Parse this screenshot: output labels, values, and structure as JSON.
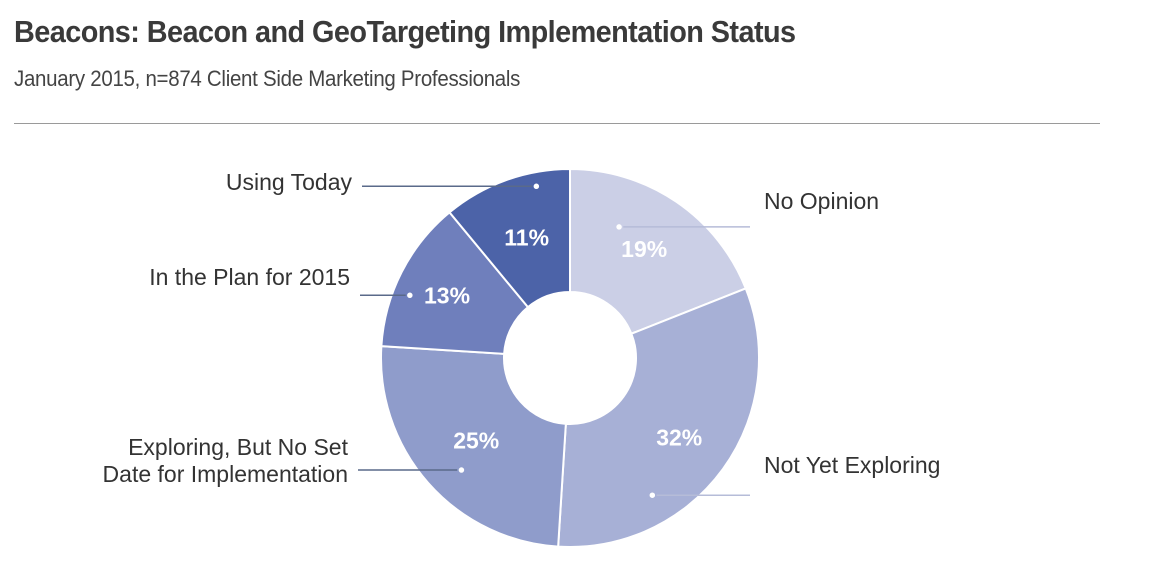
{
  "header": {
    "title": "Beacons: Beacon and GeoTargeting Implementation Status",
    "subtitle": "January 2015, n=874 Client Side Marketing Professionals"
  },
  "chart_data": {
    "type": "pie",
    "donut": true,
    "title": "Beacons: Beacon and GeoTargeting Implementation Status",
    "subtitle": "January 2015, n=874 Client Side Marketing Professionals",
    "slices": [
      {
        "label": "No Opinion",
        "value": 19,
        "display": "19%",
        "color": "#cbcfe6"
      },
      {
        "label": "Not Yet Exploring",
        "value": 32,
        "display": "32%",
        "color": "#a7b0d6"
      },
      {
        "label": "Exploring, But No Set Date for Implementation",
        "label_lines": [
          "Exploring, But No Set",
          "Date for Implementation"
        ],
        "value": 25,
        "display": "25%",
        "color": "#8f9ccb"
      },
      {
        "label": "In the Plan for 2015",
        "value": 13,
        "display": "13%",
        "color": "#6f7fbc"
      },
      {
        "label": "Using Today",
        "value": 11,
        "display": "11%",
        "color": "#4c63a8"
      }
    ],
    "legend": "callout-labels"
  }
}
